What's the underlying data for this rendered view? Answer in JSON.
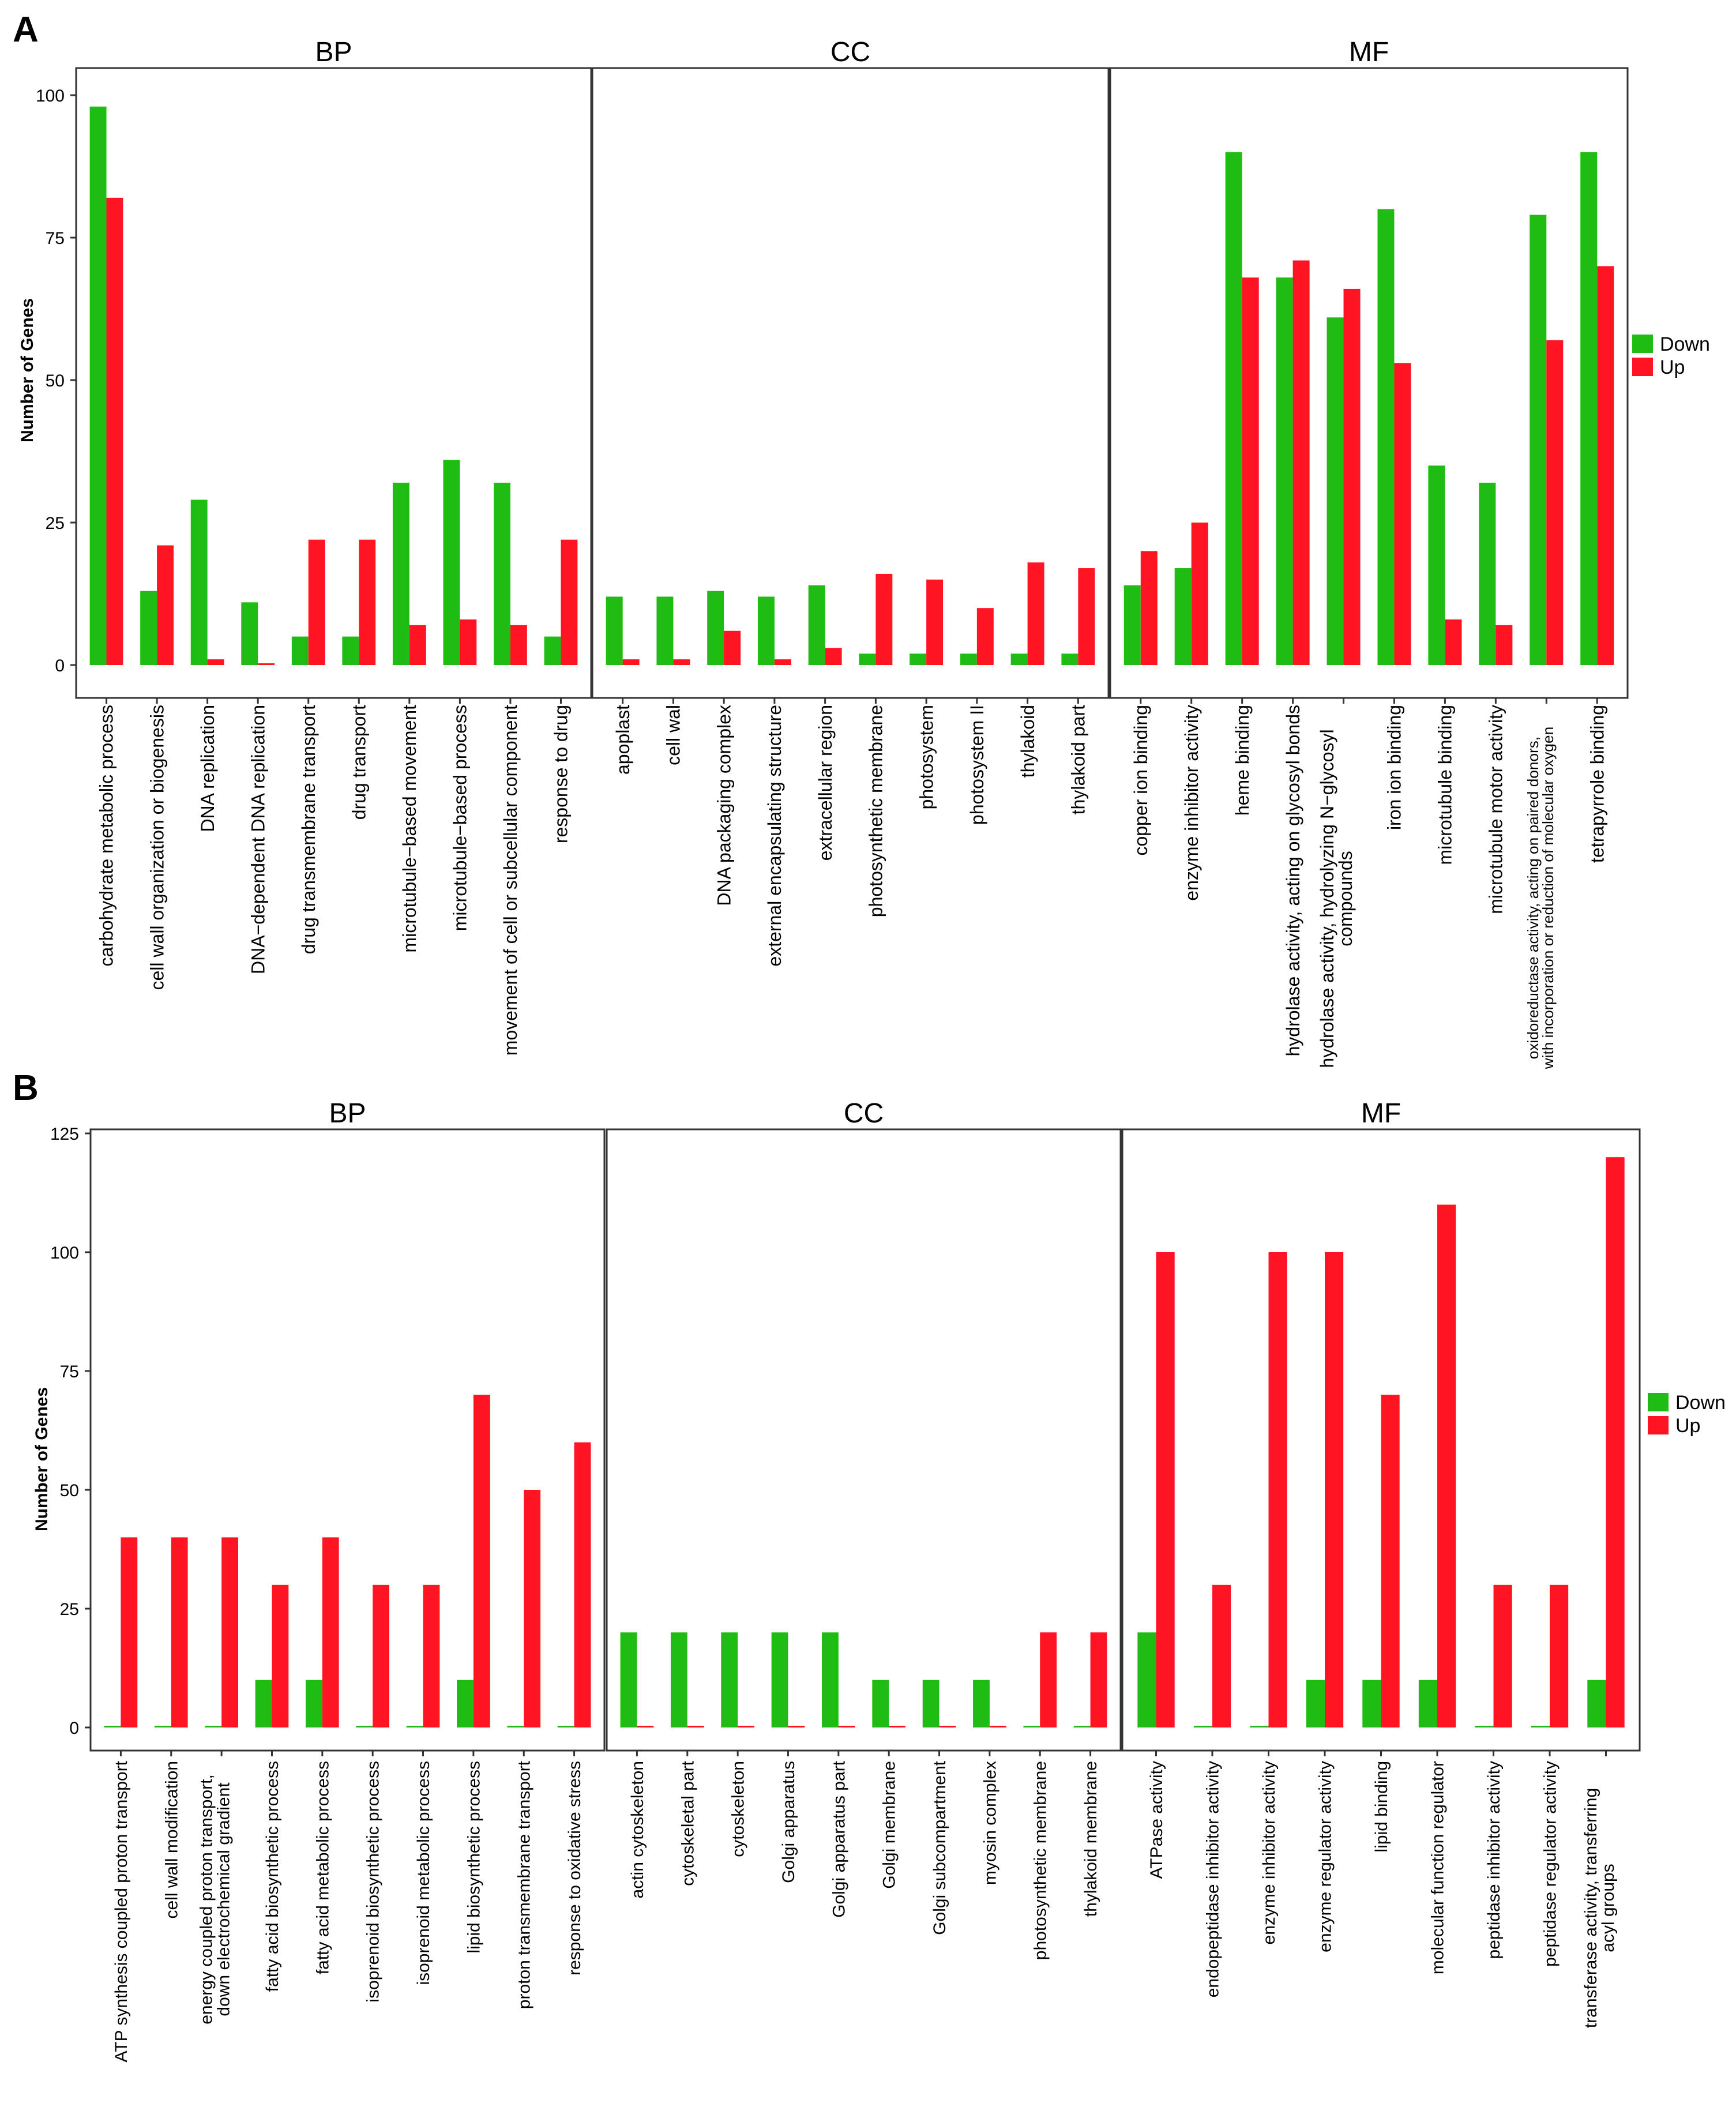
{
  "colors": {
    "down": "#1fbd13",
    "up": "#ff1423",
    "frame": "#333333",
    "tick": "#333333"
  },
  "figures": [
    {
      "panel_label": "A",
      "ylabel": "Number of Genes",
      "ylim": [
        0,
        100
      ],
      "yticks": [
        0,
        25,
        50,
        75,
        100
      ],
      "legend": {
        "placement": "right",
        "items": [
          "Down",
          "Up"
        ]
      },
      "panels": [
        {
          "title": "BP",
          "categories": [
            "carbohydrate metabolic process",
            "cell wall organization or biogenesis",
            "DNA replication",
            "DNA−dependent DNA replication",
            "drug transmembrane transport",
            "drug transport",
            "microtubule−based movement",
            "microtubule−based process",
            "movement of cell or subcellular component",
            "response to drug"
          ],
          "down": [
            98,
            13,
            29,
            11,
            5,
            5,
            32,
            36,
            32,
            5
          ],
          "up": [
            82,
            21,
            1,
            0,
            22,
            22,
            7,
            8,
            7,
            22
          ]
        },
        {
          "title": "CC",
          "categories": [
            "apoplast",
            "cell wal",
            "DNA packaging complex",
            "external encapsulating structure",
            "extracellular region",
            "photosynthetic membrane",
            "photosystem",
            "photosystem II",
            "thylakoid",
            "thylakoid part"
          ],
          "down": [
            12,
            12,
            13,
            12,
            14,
            2,
            2,
            2,
            2,
            2
          ],
          "up": [
            1,
            1,
            6,
            1,
            3,
            16,
            15,
            10,
            18,
            17
          ]
        },
        {
          "title": "MF",
          "categories": [
            "copper ion binding",
            "enzyme inhibitor activity",
            "heme binding",
            "hydrolase activity, acting on glycosyl bonds",
            "hydrolase activity, hydrolyzing N−glycosyl compounds",
            "iron ion binding",
            "microtubule binding",
            "microtubule motor activity",
            "oxidoreductase activity, acting on paired donors, with incorporation or reduction of molecular oxygen",
            "tetrapyrrole binding"
          ],
          "down": [
            14,
            17,
            90,
            68,
            61,
            80,
            35,
            32,
            79,
            90
          ],
          "up": [
            20,
            25,
            68,
            71,
            66,
            53,
            8,
            7,
            57,
            70
          ]
        }
      ]
    },
    {
      "panel_label": "B",
      "ylabel": "Number of Genes",
      "ylim": [
        0,
        125
      ],
      "yticks": [
        0,
        25,
        50,
        75,
        100,
        125
      ],
      "legend": {
        "placement": "right",
        "items": [
          "Down",
          "Up"
        ]
      },
      "panels": [
        {
          "title": "BP",
          "categories": [
            "ATP synthesis coupled proton transport",
            "cell wall modification",
            "energy coupled proton transport, down electrochemical gradient",
            "fatty acid biosynthetic process",
            "fatty acid metabolic process",
            "isoprenoid biosynthetic process",
            "isoprenoid metabolic process",
            "lipid biosynthetic process",
            "proton transmembrane transport",
            "response to oxidative stress"
          ],
          "down": [
            0,
            0,
            0,
            10,
            10,
            0,
            0,
            10,
            0,
            0
          ],
          "up": [
            40,
            40,
            40,
            30,
            40,
            30,
            30,
            70,
            50,
            60
          ]
        },
        {
          "title": "CC",
          "categories": [
            "actin cytoskeleton",
            "cytoskeletal part",
            "cytoskeleton",
            "Golgi apparatus",
            "Golgi apparatus part",
            "Golgi membrane",
            "Golgi subcompartment",
            "myosin complex",
            "photosynthetic membrane",
            "thylakoid membrane"
          ],
          "down": [
            20,
            20,
            20,
            20,
            20,
            10,
            10,
            10,
            0,
            0
          ],
          "up": [
            0,
            0,
            0,
            0,
            0,
            0,
            0,
            0,
            20,
            20
          ]
        },
        {
          "title": "MF",
          "categories": [
            "ATPase activity",
            "endopeptidase inhibitor activity",
            "enzyme inhibitor activity",
            "enzyme regulator activity",
            "lipid binding",
            "molecular function regulator",
            "peptidase inhibitor activity",
            "peptidase regulator activity",
            "transferase activity, transferring acyl groups"
          ],
          "down": [
            20,
            0,
            0,
            10,
            10,
            10,
            0,
            0,
            10
          ],
          "up": [
            100,
            30,
            100,
            100,
            70,
            110,
            30,
            30,
            120
          ]
        }
      ]
    }
  ],
  "chart_data": [
    {
      "type": "bar",
      "title": "A",
      "ylabel": "Number of Genes",
      "ylim": [
        0,
        100
      ],
      "facets": [
        "BP",
        "CC",
        "MF"
      ],
      "series": [
        {
          "name": "Down",
          "values": [
            98,
            13,
            29,
            11,
            5,
            5,
            32,
            36,
            32,
            5,
            12,
            12,
            13,
            12,
            14,
            2,
            2,
            2,
            2,
            2,
            14,
            17,
            90,
            68,
            61,
            80,
            35,
            32,
            79,
            90
          ]
        },
        {
          "name": "Up",
          "values": [
            82,
            21,
            1,
            0,
            22,
            22,
            7,
            8,
            7,
            22,
            1,
            1,
            6,
            1,
            3,
            16,
            15,
            10,
            18,
            17,
            20,
            25,
            68,
            71,
            66,
            53,
            8,
            7,
            57,
            70
          ]
        }
      ]
    },
    {
      "type": "bar",
      "title": "B",
      "ylabel": "Number of Genes",
      "ylim": [
        0,
        125
      ],
      "facets": [
        "BP",
        "CC",
        "MF"
      ],
      "series": [
        {
          "name": "Down",
          "values": [
            0,
            0,
            0,
            10,
            10,
            0,
            0,
            10,
            0,
            0,
            20,
            20,
            20,
            20,
            20,
            10,
            10,
            10,
            0,
            0,
            20,
            0,
            0,
            10,
            10,
            10,
            0,
            0,
            10
          ]
        },
        {
          "name": "Up",
          "values": [
            40,
            40,
            40,
            30,
            40,
            30,
            30,
            70,
            50,
            60,
            0,
            0,
            0,
            0,
            0,
            0,
            0,
            0,
            20,
            20,
            100,
            30,
            100,
            100,
            70,
            110,
            30,
            30,
            120
          ]
        }
      ]
    }
  ]
}
